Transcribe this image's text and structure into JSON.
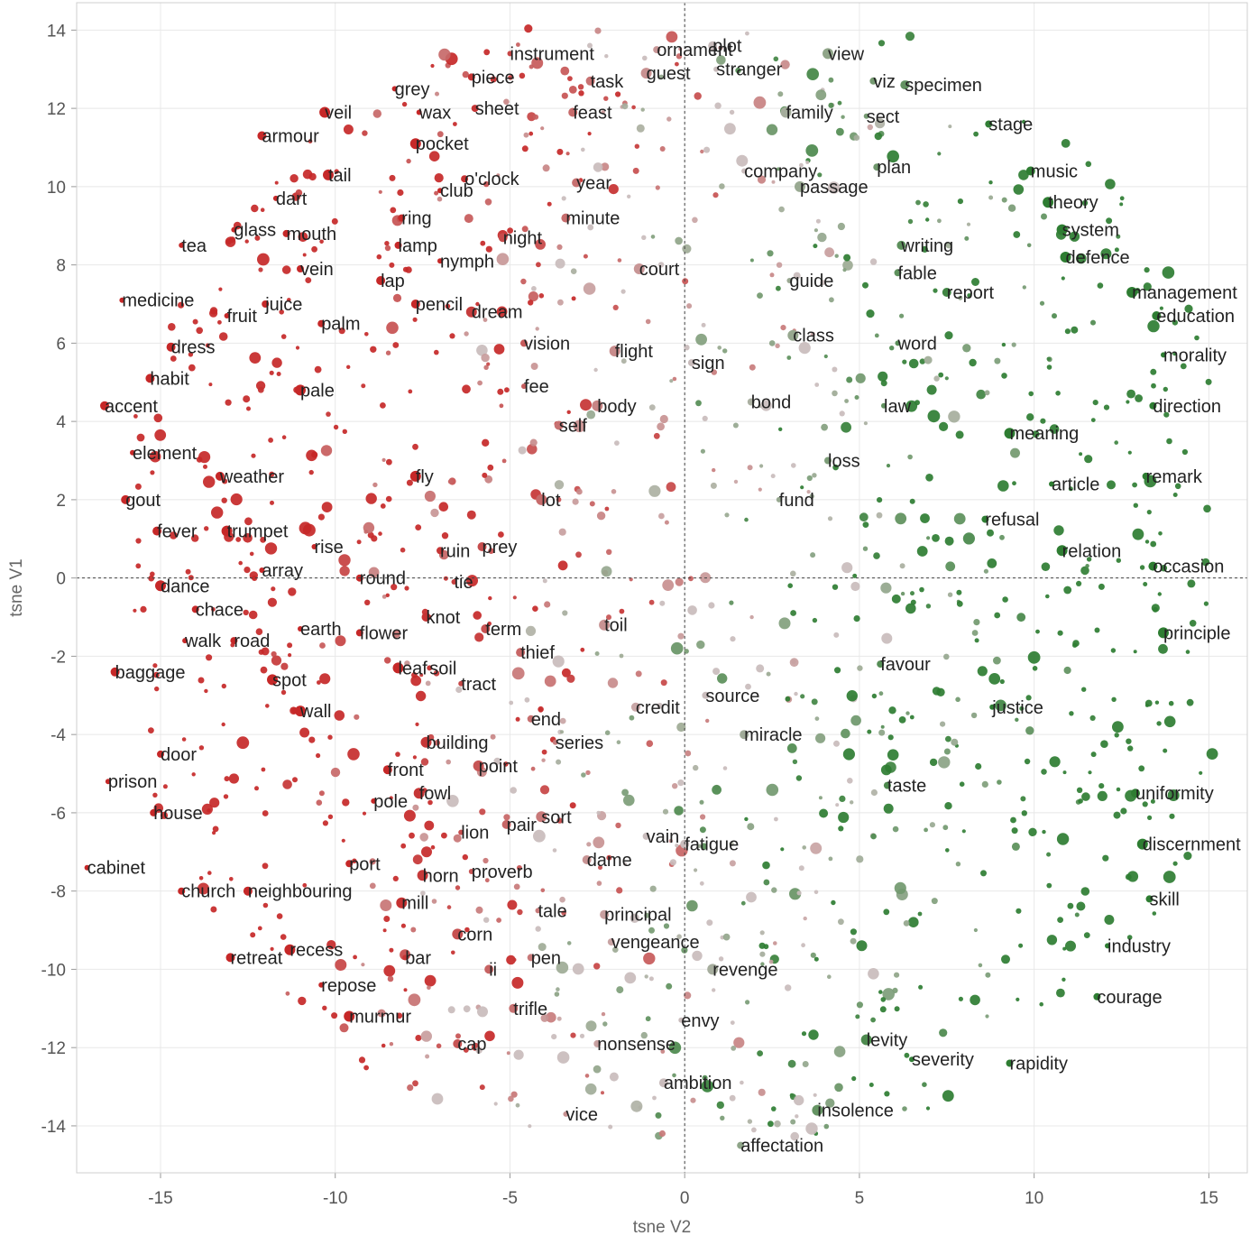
{
  "chart_data": {
    "type": "scatter",
    "title": "",
    "xlabel": "tsne V2",
    "ylabel": "tsne V1",
    "xlim": [
      -17.4,
      16.1
    ],
    "ylim": [
      -15.2,
      14.7
    ],
    "xticks": [
      -15,
      -10,
      -5,
      0,
      5,
      10,
      15
    ],
    "yticks": [
      -14,
      -12,
      -10,
      -8,
      -6,
      -4,
      -2,
      0,
      2,
      4,
      6,
      8,
      10,
      12,
      14
    ],
    "grid": true,
    "reference_lines": {
      "x": 0,
      "y": 0
    },
    "color_scale": {
      "negative": "#c62828",
      "neutral": "#c9bcbc",
      "positive": "#2e7d32"
    },
    "labeled_points": [
      {
        "word": "instrument",
        "x": -5.0,
        "y": 13.4
      },
      {
        "word": "ornament",
        "x": -0.8,
        "y": 13.5
      },
      {
        "word": "plot",
        "x": 0.8,
        "y": 13.6
      },
      {
        "word": "view",
        "x": 4.1,
        "y": 13.4
      },
      {
        "word": "grey",
        "x": -8.3,
        "y": 12.5
      },
      {
        "word": "piece",
        "x": -6.1,
        "y": 12.8
      },
      {
        "word": "task",
        "x": -2.7,
        "y": 12.7
      },
      {
        "word": "guest",
        "x": -1.1,
        "y": 12.9
      },
      {
        "word": "stranger",
        "x": 0.9,
        "y": 13.0
      },
      {
        "word": "viz",
        "x": 5.4,
        "y": 12.7
      },
      {
        "word": "specimen",
        "x": 6.3,
        "y": 12.6
      },
      {
        "word": "veil",
        "x": -10.3,
        "y": 11.9
      },
      {
        "word": "wax",
        "x": -7.6,
        "y": 11.9
      },
      {
        "word": "sheet",
        "x": -6.0,
        "y": 12.0
      },
      {
        "word": "feast",
        "x": -3.2,
        "y": 11.9
      },
      {
        "word": "family",
        "x": 2.9,
        "y": 11.9
      },
      {
        "word": "sect",
        "x": 5.2,
        "y": 11.8
      },
      {
        "word": "stage",
        "x": 8.7,
        "y": 11.6
      },
      {
        "word": "armour",
        "x": -12.1,
        "y": 11.3
      },
      {
        "word": "pocket",
        "x": -7.7,
        "y": 11.1
      },
      {
        "word": "company",
        "x": 1.7,
        "y": 10.4
      },
      {
        "word": "plan",
        "x": 5.5,
        "y": 10.5
      },
      {
        "word": "music",
        "x": 9.9,
        "y": 10.4
      },
      {
        "word": "tail",
        "x": -10.2,
        "y": 10.3
      },
      {
        "word": "club",
        "x": -7.0,
        "y": 9.9
      },
      {
        "word": "o'clock",
        "x": -6.3,
        "y": 10.2
      },
      {
        "word": "year",
        "x": -3.1,
        "y": 10.1
      },
      {
        "word": "passage",
        "x": 3.3,
        "y": 10.0
      },
      {
        "word": "dart",
        "x": -11.7,
        "y": 9.7
      },
      {
        "word": "ring",
        "x": -8.1,
        "y": 9.2
      },
      {
        "word": "minute",
        "x": -3.4,
        "y": 9.2
      },
      {
        "word": "theory",
        "x": 10.4,
        "y": 9.6
      },
      {
        "word": "glass",
        "x": -12.9,
        "y": 8.9
      },
      {
        "word": "mouth",
        "x": -11.4,
        "y": 8.8
      },
      {
        "word": "night",
        "x": -5.2,
        "y": 8.7
      },
      {
        "word": "system",
        "x": 10.8,
        "y": 8.9
      },
      {
        "word": "tea",
        "x": -14.4,
        "y": 8.5
      },
      {
        "word": "lamp",
        "x": -8.2,
        "y": 8.5
      },
      {
        "word": "writing",
        "x": 6.2,
        "y": 8.5
      },
      {
        "word": "defence",
        "x": 10.9,
        "y": 8.2
      },
      {
        "word": "nymph",
        "x": -7.0,
        "y": 8.1
      },
      {
        "word": "vein",
        "x": -11.0,
        "y": 7.9
      },
      {
        "word": "lap",
        "x": -8.7,
        "y": 7.6
      },
      {
        "word": "court",
        "x": -1.3,
        "y": 7.9
      },
      {
        "word": "guide",
        "x": 3.0,
        "y": 7.6
      },
      {
        "word": "fable",
        "x": 6.1,
        "y": 7.8
      },
      {
        "word": "report",
        "x": 7.5,
        "y": 7.3
      },
      {
        "word": "management",
        "x": 12.8,
        "y": 7.3
      },
      {
        "word": "medicine",
        "x": -16.1,
        "y": 7.1
      },
      {
        "word": "juice",
        "x": -12.0,
        "y": 7.0
      },
      {
        "word": "pencil",
        "x": -7.7,
        "y": 7.0
      },
      {
        "word": "dream",
        "x": -6.1,
        "y": 6.8
      },
      {
        "word": "fruit",
        "x": -13.1,
        "y": 6.7
      },
      {
        "word": "palm",
        "x": -10.4,
        "y": 6.5
      },
      {
        "word": "education",
        "x": 13.5,
        "y": 6.7
      },
      {
        "word": "class",
        "x": 3.1,
        "y": 6.2
      },
      {
        "word": "word",
        "x": 6.1,
        "y": 6.0
      },
      {
        "word": "vision",
        "x": -4.6,
        "y": 6.0
      },
      {
        "word": "dress",
        "x": -14.7,
        "y": 5.9
      },
      {
        "word": "flight",
        "x": -2.0,
        "y": 5.8
      },
      {
        "word": "morality",
        "x": 13.7,
        "y": 5.7
      },
      {
        "word": "sign",
        "x": 0.2,
        "y": 5.5
      },
      {
        "word": "habit",
        "x": -15.3,
        "y": 5.1
      },
      {
        "word": "pale",
        "x": -11.0,
        "y": 4.8
      },
      {
        "word": "fee",
        "x": -4.6,
        "y": 4.9
      },
      {
        "word": "bond",
        "x": 1.9,
        "y": 4.5
      },
      {
        "word": "accent",
        "x": -16.6,
        "y": 4.4
      },
      {
        "word": "body",
        "x": -2.5,
        "y": 4.4
      },
      {
        "word": "law",
        "x": 5.7,
        "y": 4.4
      },
      {
        "word": "direction",
        "x": 13.4,
        "y": 4.4
      },
      {
        "word": "self",
        "x": -3.6,
        "y": 3.9
      },
      {
        "word": "meaning",
        "x": 9.3,
        "y": 3.7
      },
      {
        "word": "element",
        "x": -15.8,
        "y": 3.2
      },
      {
        "word": "loss",
        "x": 4.1,
        "y": 3.0
      },
      {
        "word": "weather",
        "x": -13.3,
        "y": 2.6
      },
      {
        "word": "fly",
        "x": -7.7,
        "y": 2.6
      },
      {
        "word": "article",
        "x": 10.5,
        "y": 2.4
      },
      {
        "word": "remark",
        "x": 13.2,
        "y": 2.6
      },
      {
        "word": "gout",
        "x": -16.0,
        "y": 2.0
      },
      {
        "word": "lot",
        "x": -4.1,
        "y": 2.0
      },
      {
        "word": "fund",
        "x": 2.7,
        "y": 2.0
      },
      {
        "word": "refusal",
        "x": 8.6,
        "y": 1.5
      },
      {
        "word": "fever",
        "x": -15.1,
        "y": 1.2
      },
      {
        "word": "trumpet",
        "x": -13.1,
        "y": 1.2
      },
      {
        "word": "rise",
        "x": -10.6,
        "y": 0.8
      },
      {
        "word": "ruin",
        "x": -7.0,
        "y": 0.7
      },
      {
        "word": "prey",
        "x": -5.8,
        "y": 0.8
      },
      {
        "word": "relation",
        "x": 10.8,
        "y": 0.7
      },
      {
        "word": "array",
        "x": -12.1,
        "y": 0.2
      },
      {
        "word": "round",
        "x": -9.3,
        "y": 0.0
      },
      {
        "word": "occasion",
        "x": 13.4,
        "y": 0.3
      },
      {
        "word": "dance",
        "x": -15.0,
        "y": -0.2
      },
      {
        "word": "tie",
        "x": -6.6,
        "y": -0.1
      },
      {
        "word": "chace",
        "x": -14.0,
        "y": -0.8
      },
      {
        "word": "knot",
        "x": -7.4,
        "y": -1.0
      },
      {
        "word": "toil",
        "x": -2.3,
        "y": -1.2
      },
      {
        "word": "earth",
        "x": -11.0,
        "y": -1.3
      },
      {
        "word": "flower",
        "x": -9.3,
        "y": -1.4
      },
      {
        "word": "term",
        "x": -5.7,
        "y": -1.3
      },
      {
        "word": "principle",
        "x": 13.7,
        "y": -1.4
      },
      {
        "word": "walk",
        "x": -14.3,
        "y": -1.6
      },
      {
        "word": "road",
        "x": -12.9,
        "y": -1.6
      },
      {
        "word": "thief",
        "x": -4.7,
        "y": -1.9
      },
      {
        "word": "leaf",
        "x": -8.2,
        "y": -2.3
      },
      {
        "word": "soil",
        "x": -7.3,
        "y": -2.3
      },
      {
        "word": "favour",
        "x": 5.6,
        "y": -2.2
      },
      {
        "word": "baggage",
        "x": -16.3,
        "y": -2.4
      },
      {
        "word": "spot",
        "x": -11.8,
        "y": -2.6
      },
      {
        "word": "tract",
        "x": -6.4,
        "y": -2.7
      },
      {
        "word": "source",
        "x": 0.6,
        "y": -3.0
      },
      {
        "word": "credit",
        "x": -1.4,
        "y": -3.3
      },
      {
        "word": "wall",
        "x": -11.0,
        "y": -3.4
      },
      {
        "word": "justice",
        "x": 8.8,
        "y": -3.3
      },
      {
        "word": "end",
        "x": -4.4,
        "y": -3.6
      },
      {
        "word": "miracle",
        "x": 1.7,
        "y": -4.0
      },
      {
        "word": "building",
        "x": -7.4,
        "y": -4.2
      },
      {
        "word": "series",
        "x": -3.7,
        "y": -4.2
      },
      {
        "word": "door",
        "x": -15.0,
        "y": -4.5
      },
      {
        "word": "front",
        "x": -8.5,
        "y": -4.9
      },
      {
        "word": "point",
        "x": -5.9,
        "y": -4.8
      },
      {
        "word": "prison",
        "x": -16.5,
        "y": -5.2
      },
      {
        "word": "taste",
        "x": 5.8,
        "y": -5.3
      },
      {
        "word": "uniformity",
        "x": 12.9,
        "y": -5.5
      },
      {
        "word": "fowl",
        "x": -7.6,
        "y": -5.5
      },
      {
        "word": "pole",
        "x": -8.9,
        "y": -5.7
      },
      {
        "word": "house",
        "x": -15.2,
        "y": -6.0
      },
      {
        "word": "pair",
        "x": -5.1,
        "y": -6.3
      },
      {
        "word": "sort",
        "x": -4.1,
        "y": -6.1
      },
      {
        "word": "lion",
        "x": -6.4,
        "y": -6.5
      },
      {
        "word": "vain",
        "x": -1.1,
        "y": -6.6
      },
      {
        "word": "fatigue",
        "x": 0.0,
        "y": -6.8
      },
      {
        "word": "discernment",
        "x": 13.1,
        "y": -6.8
      },
      {
        "word": "cabinet",
        "x": -17.1,
        "y": -7.4
      },
      {
        "word": "port",
        "x": -9.6,
        "y": -7.3
      },
      {
        "word": "dame",
        "x": -2.8,
        "y": -7.2
      },
      {
        "word": "horn",
        "x": -7.5,
        "y": -7.6
      },
      {
        "word": "proverb",
        "x": -6.1,
        "y": -7.5
      },
      {
        "word": "church",
        "x": -14.4,
        "y": -8.0
      },
      {
        "word": "neighbouring",
        "x": -12.5,
        "y": -8.0
      },
      {
        "word": "mill",
        "x": -8.1,
        "y": -8.3
      },
      {
        "word": "tale",
        "x": -4.2,
        "y": -8.5
      },
      {
        "word": "skill",
        "x": 13.3,
        "y": -8.2
      },
      {
        "word": "principal",
        "x": -2.3,
        "y": -8.6
      },
      {
        "word": "corn",
        "x": -6.5,
        "y": -9.1
      },
      {
        "word": "industry",
        "x": 12.1,
        "y": -9.4
      },
      {
        "word": "vengeance",
        "x": -2.1,
        "y": -9.3
      },
      {
        "word": "retreat",
        "x": -13.0,
        "y": -9.7
      },
      {
        "word": "recess",
        "x": -11.3,
        "y": -9.5
      },
      {
        "word": "bar",
        "x": -8.0,
        "y": -9.7
      },
      {
        "word": "pen",
        "x": -4.4,
        "y": -9.7
      },
      {
        "word": "ii",
        "x": -5.6,
        "y": -10.0
      },
      {
        "word": "revenge",
        "x": 0.8,
        "y": -10.0
      },
      {
        "word": "repose",
        "x": -10.4,
        "y": -10.4
      },
      {
        "word": "courage",
        "x": 11.8,
        "y": -10.7
      },
      {
        "word": "trifle",
        "x": -4.9,
        "y": -11.0
      },
      {
        "word": "murmur",
        "x": -9.6,
        "y": -11.2
      },
      {
        "word": "envy",
        "x": -0.1,
        "y": -11.3
      },
      {
        "word": "nonsense",
        "x": -2.5,
        "y": -11.9
      },
      {
        "word": "cap",
        "x": -6.5,
        "y": -11.9
      },
      {
        "word": "levity",
        "x": 5.2,
        "y": -11.8
      },
      {
        "word": "severity",
        "x": 6.5,
        "y": -12.3
      },
      {
        "word": "rapidity",
        "x": 9.3,
        "y": -12.4
      },
      {
        "word": "ambition",
        "x": -0.6,
        "y": -12.9
      },
      {
        "word": "insolence",
        "x": 3.8,
        "y": -13.6
      },
      {
        "word": "vice",
        "x": -3.4,
        "y": -13.7
      },
      {
        "word": "affectation",
        "x": 1.6,
        "y": -14.5
      }
    ]
  }
}
